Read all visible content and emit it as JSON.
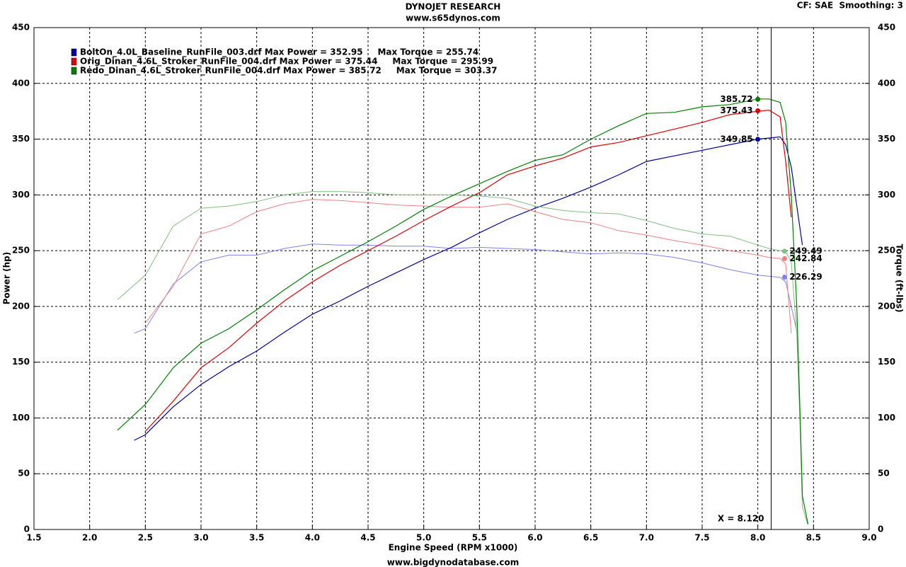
{
  "chart_data": {
    "type": "line",
    "title": "DYNOJET RESEARCH",
    "subtitle": "www.s65dynos.com",
    "settings_label": "CF: SAE  Smoothing: 3",
    "footer": "www.bigdynodatabase.com",
    "xlabel": "Engine Speed (RPM x1000)",
    "ylabel": "Power (hp)",
    "y2label": "Torque (ft-lbs)",
    "xlim": [
      1.5,
      9.0
    ],
    "xticks": [
      1.5,
      {
        "value": 2.0,
        "label": "2.0"
      },
      2.5,
      {
        "value": 3.0,
        "label": "3.0"
      },
      3.5,
      {
        "value": 4.0,
        "label": "4.0"
      },
      4.5,
      {
        "value": 5.0,
        "label": "5.0"
      },
      5.5,
      {
        "value": 6.0,
        "label": "6.0"
      },
      6.5,
      {
        "value": 7.0,
        "label": "7.0"
      },
      7.5,
      {
        "value": 8.0,
        "label": "8.0"
      },
      8.5,
      {
        "value": 9.0,
        "label": "9.0"
      }
    ],
    "ylim": [
      0,
      450
    ],
    "yticks": [
      0,
      50,
      100,
      150,
      200,
      250,
      300,
      350,
      400,
      450
    ],
    "y2lim": [
      0,
      450
    ],
    "y2ticks": [
      0,
      50,
      100,
      150,
      200,
      250,
      300,
      350,
      400,
      450
    ],
    "grid": true,
    "cursor": {
      "x": 8.12,
      "label": "X = 8.120"
    },
    "series": [
      {
        "name": "BoltOn_4.0L_Baseline_RunFile_003.drf Max Power = 352.95     Max Torque = 255.74",
        "color": "#0000a0",
        "torque_color": "#8080f0",
        "x": [
          2.4,
          2.5,
          2.75,
          3.0,
          3.25,
          3.5,
          3.75,
          4.0,
          4.25,
          4.5,
          4.75,
          5.0,
          5.25,
          5.5,
          5.75,
          6.0,
          6.25,
          6.5,
          6.75,
          7.0,
          7.25,
          7.5,
          7.75,
          8.0,
          8.1,
          8.2,
          8.25,
          8.3,
          8.35,
          8.4
        ],
        "values": [
          80,
          85,
          110,
          130,
          146,
          160,
          177,
          193,
          205,
          218,
          230,
          242,
          253,
          266,
          278,
          288,
          297,
          307,
          318,
          330,
          335,
          340,
          345,
          350,
          351,
          352,
          345,
          325,
          290,
          255
        ],
        "torque_values": [
          176,
          180,
          220,
          240,
          246,
          246,
          252,
          256,
          255,
          255,
          254,
          254,
          252,
          253,
          252,
          251,
          249,
          247,
          248,
          247,
          244,
          239,
          233,
          228,
          227,
          226,
          222,
          200,
          178,
          null
        ],
        "power_marker": {
          "x": 8.0,
          "value": 349.85
        },
        "torque_marker": {
          "x": 8.24,
          "value": 226.29
        }
      },
      {
        "name": "Orig_Dinan_4.6L_Stroker_RunFile_004.drf Max Power = 375.44     Max Torque = 295.99",
        "color": "#e00000",
        "torque_color": "#f08080",
        "x": [
          2.5,
          2.75,
          3.0,
          3.25,
          3.5,
          3.75,
          4.0,
          4.25,
          4.5,
          4.75,
          5.0,
          5.25,
          5.5,
          5.75,
          6.0,
          6.25,
          6.5,
          6.75,
          7.0,
          7.25,
          7.5,
          7.75,
          8.0,
          8.1,
          8.2,
          8.25,
          8.3
        ],
        "values": [
          88,
          115,
          145,
          163,
          185,
          205,
          222,
          237,
          250,
          263,
          277,
          290,
          302,
          318,
          326,
          333,
          343,
          347,
          353,
          359,
          365,
          372,
          375,
          376,
          370,
          330,
          280
        ],
        "torque_values": [
          185,
          218,
          265,
          272,
          285,
          292,
          296,
          295,
          293,
          291,
          290,
          289,
          289,
          292,
          285,
          278,
          275,
          268,
          264,
          259,
          255,
          250,
          246,
          244,
          243,
          238,
          176
        ],
        "power_marker": {
          "x": 8.0,
          "value": 375.43
        },
        "torque_marker": {
          "x": 8.24,
          "value": 242.84
        }
      },
      {
        "name": "Redo_Dinan_4.6L_Stroker_RunFile_004.drf Max Power = 385.72     Max Torque = 303.37",
        "color": "#008000",
        "torque_color": "#80c080",
        "x": [
          2.25,
          2.5,
          2.75,
          3.0,
          3.25,
          3.5,
          3.75,
          4.0,
          4.25,
          4.5,
          4.75,
          5.0,
          5.25,
          5.5,
          5.75,
          6.0,
          6.25,
          6.5,
          6.75,
          7.0,
          7.25,
          7.5,
          7.75,
          8.0,
          8.1,
          8.2,
          8.25,
          8.3,
          8.35,
          8.38,
          8.4,
          8.45
        ],
        "values": [
          89,
          112,
          145,
          167,
          180,
          197,
          215,
          232,
          245,
          258,
          272,
          287,
          299,
          310,
          321,
          331,
          336,
          350,
          362,
          373,
          374,
          379,
          381,
          386,
          386,
          383,
          365,
          300,
          200,
          100,
          30,
          5
        ],
        "torque_values": [
          206,
          228,
          272,
          288,
          290,
          294,
          300,
          303,
          303,
          302,
          300,
          300,
          300,
          299,
          297,
          290,
          286,
          284,
          283,
          277,
          270,
          265,
          263,
          255,
          252,
          250,
          249,
          240,
          175,
          90,
          20,
          4
        ],
        "power_marker": {
          "x": 8.0,
          "value": 385.72
        },
        "torque_marker": {
          "x": 8.24,
          "value": 249.49
        }
      }
    ]
  }
}
